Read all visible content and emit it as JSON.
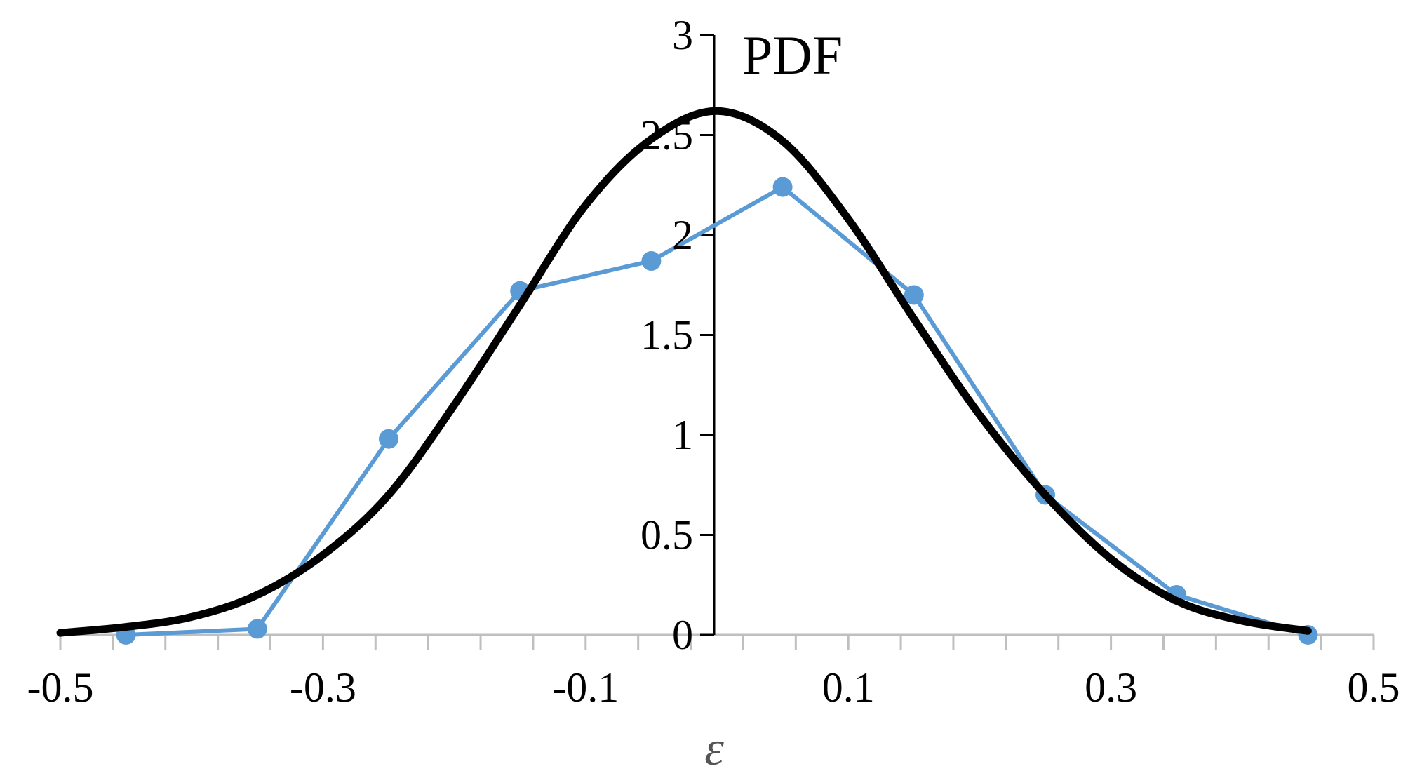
{
  "chart_data": {
    "type": "line",
    "title": "",
    "xlabel": "ε",
    "ylabel": "PDF",
    "xlim": [
      -0.5,
      0.5
    ],
    "ylim": [
      0,
      3
    ],
    "x_ticks": [
      -0.5,
      -0.3,
      -0.1,
      0.1,
      0.3,
      0.5
    ],
    "x_tick_labels": [
      "-0.5",
      "-0.3",
      "-0.1",
      "0.1",
      "0.3",
      "0.5"
    ],
    "x_minor_ticks": [
      -0.5,
      -0.46,
      -0.42,
      -0.38,
      -0.34,
      -0.3,
      -0.26,
      -0.22,
      -0.18,
      -0.14,
      -0.1,
      -0.06,
      -0.02,
      0.02,
      0.06,
      0.1,
      0.14,
      0.18,
      0.22,
      0.26,
      0.3,
      0.34,
      0.38,
      0.42,
      0.46,
      0.5
    ],
    "y_ticks": [
      0,
      0.5,
      1,
      1.5,
      2,
      2.5,
      3
    ],
    "y_tick_labels": [
      "0",
      "0.5",
      "1",
      "1.5",
      "2",
      "2.5",
      "3"
    ],
    "grid": false,
    "legend": "none",
    "series": [
      {
        "style": "line-markers",
        "color": "#5b9bd5",
        "x": [
          -0.45,
          -0.35,
          -0.25,
          -0.15,
          -0.05,
          0.05,
          0.15,
          0.25,
          0.35,
          0.45
        ],
        "y": [
          0.0,
          0.03,
          0.98,
          1.72,
          1.87,
          2.24,
          1.7,
          0.7,
          0.2,
          0.0
        ]
      },
      {
        "style": "smooth-line",
        "color": "#000000",
        "x": [
          -0.5,
          -0.45,
          -0.4,
          -0.35,
          -0.3,
          -0.25,
          -0.2,
          -0.15,
          -0.1,
          -0.05,
          0.0,
          0.05,
          0.1,
          0.15,
          0.2,
          0.25,
          0.3,
          0.35,
          0.4,
          0.45
        ],
        "y": [
          0.01,
          0.04,
          0.09,
          0.2,
          0.4,
          0.7,
          1.15,
          1.65,
          2.15,
          2.48,
          2.62,
          2.47,
          2.08,
          1.58,
          1.1,
          0.7,
          0.38,
          0.17,
          0.07,
          0.02
        ]
      }
    ]
  }
}
